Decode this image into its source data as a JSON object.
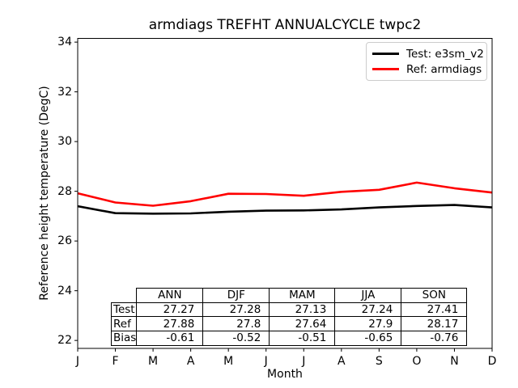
{
  "figure": {
    "background": "#ffffff",
    "frame_color": "#000000"
  },
  "chart_data": {
    "type": "line",
    "title": "armdiags TREFHT ANNUALCYCLE twpc2",
    "xlabel": "Month",
    "ylabel": "Reference height temperature (DegC)",
    "x_ticklabels": [
      "J",
      "F",
      "M",
      "A",
      "M",
      "J",
      "J",
      "A",
      "S",
      "O",
      "N",
      "D"
    ],
    "y_ticks": [
      22,
      24,
      26,
      28,
      30,
      32,
      34
    ],
    "ylim": [
      21.68,
      34.15
    ],
    "grid": false,
    "legend_position": "upper right",
    "series": [
      {
        "name": "Test: e3sm_v2",
        "color": "#000000",
        "values": [
          27.4,
          27.12,
          27.1,
          27.11,
          27.18,
          27.22,
          27.23,
          27.27,
          27.35,
          27.41,
          27.45,
          27.35
        ]
      },
      {
        "name": "Ref: armdiags",
        "color": "#ff0000",
        "values": [
          27.92,
          27.55,
          27.42,
          27.6,
          27.9,
          27.89,
          27.82,
          27.98,
          28.06,
          28.35,
          28.12,
          27.95
        ]
      }
    ]
  },
  "stats_table": {
    "columns": [
      "ANN",
      "DJF",
      "MAM",
      "JJA",
      "SON"
    ],
    "rows": [
      {
        "label": "Test",
        "values": [
          "27.27",
          "27.28",
          "27.13",
          "27.24",
          "27.41"
        ]
      },
      {
        "label": "Ref",
        "values": [
          "27.88",
          "27.8",
          "27.64",
          "27.9",
          "28.17"
        ]
      },
      {
        "label": "Bias",
        "values": [
          "-0.61",
          "-0.52",
          "-0.51",
          "-0.65",
          "-0.76"
        ]
      }
    ]
  }
}
